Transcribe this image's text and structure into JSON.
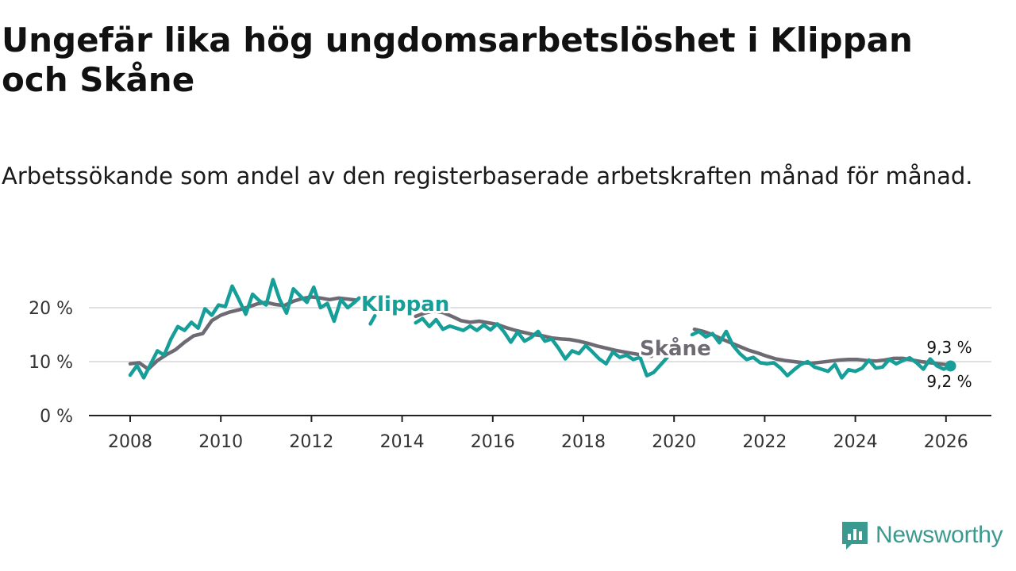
{
  "header": {
    "title": "Ungefär lika hög ungdomsarbetslöshet i Klippan och Skåne",
    "subtitle": "Arbetssökande som andel av den registerbaserade arbetskraften månad för månad."
  },
  "brand": {
    "name": "Newsworthy",
    "icon": "newsworthy-logo-icon",
    "color": "#3a9a90"
  },
  "chart_data": {
    "type": "line",
    "title": "Ungefär lika hög ungdomsarbetslöshet i Klippan och Skåne",
    "subtitle": "Arbetssökande som andel av den registerbaserade arbetskraften månad för månad.",
    "xlabel": "",
    "ylabel": "",
    "xlim": [
      2007.7,
      2027.0
    ],
    "ylim": [
      0,
      25
    ],
    "grid": true,
    "y_ticks": [
      0,
      10,
      20
    ],
    "y_tick_labels": [
      "0 %",
      "10 %",
      "20 %"
    ],
    "x_ticks": [
      2008,
      2010,
      2012,
      2014,
      2016,
      2018,
      2020,
      2022,
      2024,
      2026
    ],
    "x_tick_labels": [
      "2008",
      "2010",
      "2012",
      "2014",
      "2016",
      "2018",
      "2020",
      "2022",
      "2024",
      "2026"
    ],
    "series": [
      {
        "name": "Skåne",
        "color": "#6e6a73",
        "label": "Skåne",
        "end_label": "9,3 %",
        "end_value": 9.3,
        "points": [
          [
            2008.0,
            9.6
          ],
          [
            2008.2,
            9.8
          ],
          [
            2008.4,
            8.6
          ],
          [
            2008.6,
            10.2
          ],
          [
            2008.8,
            11.3
          ],
          [
            2009.0,
            12.2
          ],
          [
            2009.2,
            13.6
          ],
          [
            2009.4,
            14.8
          ],
          [
            2009.6,
            15.2
          ],
          [
            2009.8,
            17.6
          ],
          [
            2010.0,
            18.6
          ],
          [
            2010.2,
            19.2
          ],
          [
            2010.4,
            19.6
          ],
          [
            2010.6,
            20.1
          ],
          [
            2010.8,
            20.7
          ],
          [
            2011.0,
            21.0
          ],
          [
            2011.2,
            20.6
          ],
          [
            2011.4,
            20.4
          ],
          [
            2011.6,
            21.2
          ],
          [
            2011.8,
            21.7
          ],
          [
            2012.0,
            22.0
          ],
          [
            2012.2,
            21.8
          ],
          [
            2012.4,
            21.5
          ],
          [
            2012.6,
            21.8
          ],
          [
            2012.8,
            21.6
          ],
          [
            2013.0,
            21.4
          ],
          null,
          [
            2014.3,
            18.4
          ],
          [
            2014.5,
            19.0
          ],
          [
            2014.7,
            19.4
          ],
          [
            2014.9,
            19.1
          ],
          [
            2015.1,
            18.4
          ],
          [
            2015.3,
            17.6
          ],
          [
            2015.5,
            17.3
          ],
          [
            2015.7,
            17.5
          ],
          [
            2015.9,
            17.2
          ],
          [
            2016.1,
            16.9
          ],
          [
            2016.3,
            16.3
          ],
          [
            2016.5,
            15.8
          ],
          [
            2016.7,
            15.4
          ],
          [
            2016.9,
            15.0
          ],
          [
            2017.1,
            14.8
          ],
          [
            2017.3,
            14.4
          ],
          [
            2017.5,
            14.2
          ],
          [
            2017.7,
            14.1
          ],
          [
            2017.9,
            13.8
          ],
          [
            2018.1,
            13.4
          ],
          [
            2018.3,
            12.9
          ],
          [
            2018.5,
            12.5
          ],
          [
            2018.7,
            12.1
          ],
          [
            2018.9,
            11.8
          ],
          [
            2019.1,
            11.5
          ],
          [
            2019.3,
            11.2
          ],
          [
            2019.5,
            11.0
          ],
          null,
          [
            2020.45,
            16.0
          ],
          [
            2020.65,
            15.6
          ],
          [
            2020.85,
            15.0
          ],
          [
            2021.05,
            14.2
          ],
          [
            2021.25,
            13.5
          ],
          [
            2021.45,
            12.8
          ],
          [
            2021.65,
            12.1
          ],
          [
            2021.85,
            11.6
          ],
          [
            2022.05,
            11.0
          ],
          [
            2022.25,
            10.5
          ],
          [
            2022.45,
            10.2
          ],
          [
            2022.65,
            10.0
          ],
          [
            2022.85,
            9.8
          ],
          [
            2023.05,
            9.7
          ],
          [
            2023.25,
            9.9
          ],
          [
            2023.45,
            10.1
          ],
          [
            2023.65,
            10.3
          ],
          [
            2023.85,
            10.4
          ],
          [
            2024.05,
            10.4
          ],
          [
            2024.25,
            10.2
          ],
          [
            2024.45,
            10.1
          ],
          [
            2024.65,
            10.3
          ],
          [
            2024.85,
            10.6
          ],
          [
            2025.05,
            10.6
          ],
          [
            2025.25,
            10.3
          ],
          [
            2025.45,
            10.0
          ],
          [
            2025.65,
            9.8
          ],
          [
            2025.85,
            9.6
          ],
          [
            2026.05,
            9.4
          ],
          [
            2026.15,
            9.3
          ]
        ]
      },
      {
        "name": "Klippan",
        "color": "#169e98",
        "label": "Klippan",
        "end_label": "9,2 %",
        "end_value": 9.2,
        "points": [
          [
            2008.0,
            7.5
          ],
          [
            2008.15,
            9.3
          ],
          [
            2008.3,
            7.0
          ],
          [
            2008.45,
            9.5
          ],
          [
            2008.6,
            12.0
          ],
          [
            2008.75,
            11.2
          ],
          [
            2008.9,
            14.2
          ],
          [
            2009.05,
            16.5
          ],
          [
            2009.2,
            15.8
          ],
          [
            2009.35,
            17.3
          ],
          [
            2009.5,
            16.2
          ],
          [
            2009.65,
            19.8
          ],
          [
            2009.8,
            18.6
          ],
          [
            2009.95,
            20.5
          ],
          [
            2010.1,
            20.2
          ],
          [
            2010.25,
            24.0
          ],
          [
            2010.4,
            21.5
          ],
          [
            2010.55,
            18.8
          ],
          [
            2010.7,
            22.5
          ],
          [
            2010.85,
            21.3
          ],
          [
            2011.0,
            20.5
          ],
          [
            2011.15,
            25.2
          ],
          [
            2011.3,
            21.5
          ],
          [
            2011.45,
            19.0
          ],
          [
            2011.6,
            23.5
          ],
          [
            2011.75,
            22.2
          ],
          [
            2011.9,
            21.0
          ],
          [
            2012.05,
            23.8
          ],
          [
            2012.2,
            20.0
          ],
          [
            2012.35,
            20.8
          ],
          [
            2012.5,
            17.5
          ],
          [
            2012.65,
            21.5
          ],
          [
            2012.8,
            20.0
          ],
          [
            2012.95,
            21.0
          ],
          [
            2013.05,
            21.8
          ],
          null,
          [
            2013.3,
            17.0
          ],
          [
            2013.4,
            18.5
          ],
          null,
          [
            2014.3,
            17.2
          ],
          [
            2014.45,
            18.0
          ],
          [
            2014.6,
            16.5
          ],
          [
            2014.75,
            17.8
          ],
          [
            2014.9,
            16.0
          ],
          [
            2015.05,
            16.6
          ],
          [
            2015.2,
            16.2
          ],
          [
            2015.35,
            15.8
          ],
          [
            2015.5,
            16.6
          ],
          [
            2015.65,
            15.8
          ],
          [
            2015.8,
            16.8
          ],
          [
            2015.95,
            15.9
          ],
          [
            2016.1,
            17.0
          ],
          [
            2016.25,
            15.5
          ],
          [
            2016.4,
            13.6
          ],
          [
            2016.55,
            15.5
          ],
          [
            2016.7,
            13.8
          ],
          [
            2016.85,
            14.5
          ],
          [
            2017.0,
            15.6
          ],
          [
            2017.15,
            13.8
          ],
          [
            2017.3,
            14.2
          ],
          [
            2017.45,
            12.5
          ],
          [
            2017.6,
            10.5
          ],
          [
            2017.75,
            12.0
          ],
          [
            2017.9,
            11.5
          ],
          [
            2018.05,
            13.0
          ],
          [
            2018.2,
            11.8
          ],
          [
            2018.35,
            10.5
          ],
          [
            2018.5,
            9.6
          ],
          [
            2018.65,
            11.8
          ],
          [
            2018.8,
            10.8
          ],
          [
            2018.95,
            11.2
          ],
          [
            2019.1,
            10.4
          ],
          [
            2019.25,
            10.8
          ],
          [
            2019.4,
            7.4
          ],
          [
            2019.55,
            8.0
          ],
          [
            2019.7,
            9.4
          ],
          [
            2019.85,
            10.8
          ],
          null,
          [
            2020.4,
            15.0
          ],
          [
            2020.55,
            15.6
          ],
          [
            2020.7,
            14.6
          ],
          [
            2020.85,
            15.2
          ],
          [
            2021.0,
            13.5
          ],
          [
            2021.15,
            15.6
          ],
          [
            2021.3,
            13.0
          ],
          [
            2021.45,
            11.5
          ],
          [
            2021.6,
            10.4
          ],
          [
            2021.75,
            10.8
          ],
          [
            2021.9,
            9.8
          ],
          [
            2022.05,
            9.6
          ],
          [
            2022.2,
            9.8
          ],
          [
            2022.35,
            8.8
          ],
          [
            2022.5,
            7.4
          ],
          [
            2022.65,
            8.5
          ],
          [
            2022.8,
            9.5
          ],
          [
            2022.95,
            10.0
          ],
          [
            2023.1,
            9.0
          ],
          [
            2023.25,
            8.6
          ],
          [
            2023.4,
            8.2
          ],
          [
            2023.55,
            9.5
          ],
          [
            2023.7,
            7.0
          ],
          [
            2023.85,
            8.5
          ],
          [
            2024.0,
            8.2
          ],
          [
            2024.15,
            8.8
          ],
          [
            2024.3,
            10.3
          ],
          [
            2024.45,
            8.8
          ],
          [
            2024.6,
            9.0
          ],
          [
            2024.75,
            10.4
          ],
          [
            2024.9,
            9.6
          ],
          [
            2025.05,
            10.2
          ],
          [
            2025.2,
            10.7
          ],
          [
            2025.35,
            9.8
          ],
          [
            2025.5,
            8.6
          ],
          [
            2025.65,
            10.5
          ],
          [
            2025.8,
            9.2
          ],
          [
            2025.95,
            8.6
          ],
          [
            2026.1,
            9.2
          ]
        ]
      }
    ]
  }
}
